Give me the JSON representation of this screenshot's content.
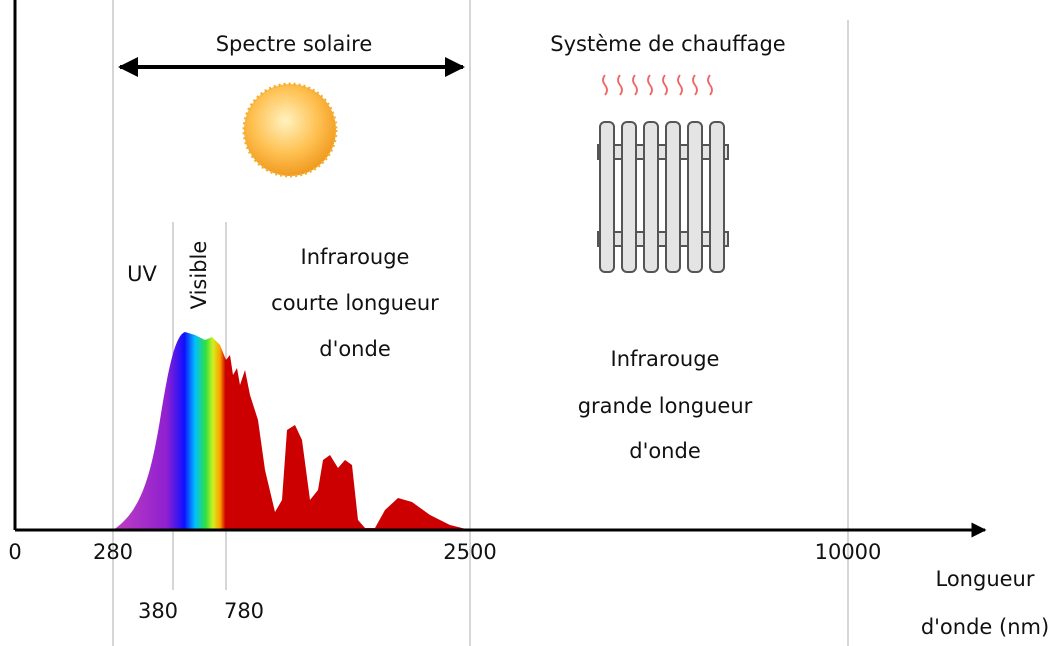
{
  "solar_range": {
    "label": "Spectre solaire"
  },
  "heating": {
    "label": "Système de chauffage"
  },
  "regions": [
    {
      "label": "UV"
    },
    {
      "label": "Visible"
    },
    {
      "lines": [
        "Infrarouge",
        "courte longueur",
        "d'onde"
      ]
    },
    {
      "lines": [
        "Infrarouge",
        "grande longueur",
        "d'onde"
      ]
    }
  ],
  "axis": {
    "ticks": [
      "0",
      "280",
      "2500",
      "10000"
    ],
    "sub_ticks": [
      "380",
      "780"
    ],
    "title_lines": [
      "Longueur",
      "d'onde (nm)"
    ]
  }
}
